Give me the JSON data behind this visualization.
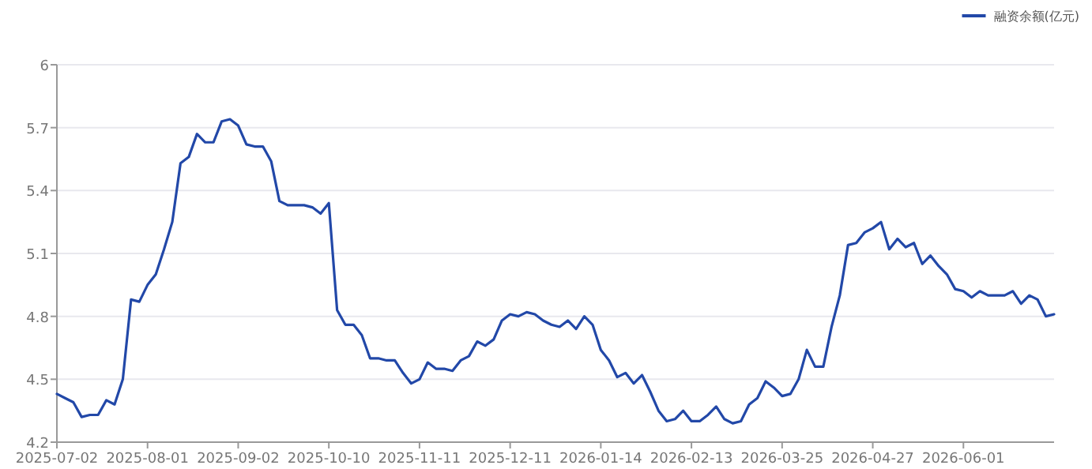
{
  "chart_data": {
    "type": "line",
    "categories": [
      "2025-07-02",
      null,
      null,
      null,
      null,
      null,
      null,
      null,
      null,
      null,
      null,
      "2025-08-01",
      null,
      null,
      null,
      null,
      null,
      null,
      null,
      null,
      null,
      null,
      "2025-09-02",
      null,
      null,
      null,
      null,
      null,
      null,
      null,
      null,
      null,
      null,
      "2025-10-10",
      null,
      null,
      null,
      null,
      null,
      null,
      null,
      null,
      null,
      null,
      "2025-11-11",
      null,
      null,
      null,
      null,
      null,
      null,
      null,
      null,
      null,
      null,
      "2025-12-11",
      null,
      null,
      null,
      null,
      null,
      null,
      null,
      null,
      null,
      null,
      "2026-01-14",
      null,
      null,
      null,
      null,
      null,
      null,
      null,
      null,
      null,
      null,
      "2026-02-13",
      null,
      null,
      null,
      null,
      null,
      null,
      null,
      null,
      null,
      null,
      "2026-03-25",
      null,
      null,
      null,
      null,
      null,
      null,
      null,
      null,
      null,
      null,
      "2026-04-27",
      null,
      null,
      null,
      null,
      null,
      null,
      null,
      null,
      null,
      null,
      "2026-06-01",
      null,
      null,
      null,
      null,
      null,
      null,
      null,
      null,
      null,
      null,
      null
    ],
    "series": [
      {
        "name": "融资余额(亿元)",
        "color": "#2248a8",
        "values": [
          4.43,
          4.41,
          4.39,
          4.32,
          4.33,
          4.33,
          4.4,
          4.38,
          4.5,
          4.88,
          4.87,
          4.95,
          5.0,
          5.12,
          5.25,
          5.53,
          5.56,
          5.67,
          5.63,
          5.63,
          5.73,
          5.74,
          5.71,
          5.62,
          5.61,
          5.61,
          5.54,
          5.35,
          5.33,
          5.33,
          5.33,
          5.32,
          5.29,
          5.34,
          4.83,
          4.76,
          4.76,
          4.71,
          4.6,
          4.6,
          4.59,
          4.59,
          4.53,
          4.48,
          4.5,
          4.58,
          4.55,
          4.55,
          4.54,
          4.59,
          4.61,
          4.68,
          4.66,
          4.69,
          4.78,
          4.81,
          4.8,
          4.82,
          4.81,
          4.78,
          4.76,
          4.75,
          4.78,
          4.74,
          4.8,
          4.76,
          4.64,
          4.59,
          4.51,
          4.53,
          4.48,
          4.52,
          4.44,
          4.35,
          4.3,
          4.31,
          4.35,
          4.3,
          4.3,
          4.33,
          4.37,
          4.31,
          4.29,
          4.3,
          4.38,
          4.41,
          4.49,
          4.46,
          4.42,
          4.43,
          4.5,
          4.64,
          4.56,
          4.56,
          4.75,
          4.9,
          5.14,
          5.15,
          5.2,
          5.22,
          5.25,
          5.12,
          5.17,
          5.13,
          5.15,
          5.05,
          5.09,
          5.04,
          5.0,
          4.93,
          4.92,
          4.89,
          4.92,
          4.9,
          4.9,
          4.9,
          4.92,
          4.86,
          4.9,
          4.88,
          4.8,
          4.81
        ]
      }
    ],
    "ylim": [
      4.2,
      6
    ],
    "yticks": [
      4.2,
      4.5,
      4.8,
      5.1,
      5.4,
      5.7,
      6
    ],
    "grid": "y",
    "legend": "top right"
  }
}
